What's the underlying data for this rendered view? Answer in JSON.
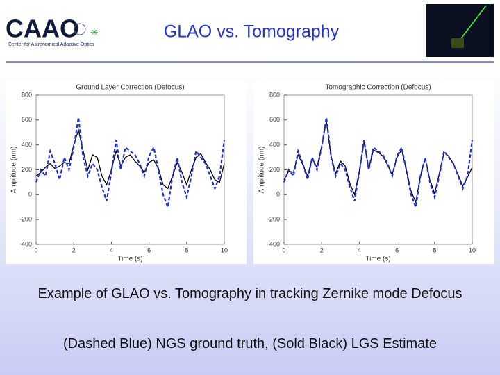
{
  "slide": {
    "logo": "CAAO",
    "logo_subtitle": "Center for Astronomical Adaptive Optics",
    "title": "GLAO vs. Tomography",
    "caption": [
      "Example of GLAO vs. Tomography in tracking Zernike mode Defocus",
      "(Dashed Blue) NGS ground truth, (Sold Black) LGS Estimate"
    ]
  },
  "chart_data": [
    {
      "type": "line",
      "title": "Ground Layer Correction (Defocus)",
      "x_label": "Time (s)",
      "y_label": "Amplitude (nm)",
      "x": [
        0,
        0.25,
        0.5,
        0.75,
        1,
        1.25,
        1.5,
        1.75,
        2,
        2.25,
        2.5,
        2.75,
        3,
        3.25,
        3.5,
        3.75,
        4,
        4.25,
        4.5,
        4.75,
        5,
        5.25,
        5.5,
        5.75,
        6,
        6.25,
        6.5,
        6.75,
        7,
        7.25,
        7.5,
        7.75,
        8,
        8.25,
        8.5,
        8.75,
        9,
        9.25,
        9.5,
        9.75,
        10
      ],
      "xlim": [
        0,
        10
      ],
      "xticks": [
        0,
        2,
        4,
        6,
        8,
        10
      ],
      "ylim": [
        -400,
        800
      ],
      "yticks": [
        800,
        600,
        400,
        200,
        0,
        -200,
        -400
      ],
      "series": [
        {
          "color": "#000000",
          "style": "solid",
          "values": [
            150,
            180,
            220,
            250,
            210,
            230,
            260,
            250,
            400,
            520,
            350,
            200,
            320,
            300,
            150,
            80,
            200,
            350,
            230,
            300,
            320,
            270,
            230,
            180,
            260,
            280,
            210,
            80,
            50,
            150,
            260,
            180,
            80,
            200,
            300,
            330,
            260,
            200,
            120,
            100,
            250
          ]
        },
        {
          "color": "#1f2fd0",
          "style": "dashed",
          "values": [
            100,
            200,
            150,
            350,
            250,
            120,
            300,
            200,
            380,
            620,
            300,
            150,
            250,
            200,
            60,
            -50,
            180,
            440,
            200,
            380,
            350,
            320,
            250,
            150,
            310,
            380,
            200,
            0,
            -100,
            150,
            300,
            100,
            -20,
            150,
            350,
            300,
            250,
            150,
            50,
            150,
            440
          ]
        }
      ]
    },
    {
      "type": "line",
      "title": "Tomographic Correction (Defocus)",
      "x_label": "Time (s)",
      "y_label": "Amplitude (nm)",
      "x": [
        0,
        0.25,
        0.5,
        0.75,
        1,
        1.25,
        1.5,
        1.75,
        2,
        2.25,
        2.5,
        2.75,
        3,
        3.25,
        3.5,
        3.75,
        4,
        4.25,
        4.5,
        4.75,
        5,
        5.25,
        5.5,
        5.75,
        6,
        6.25,
        6.5,
        6.75,
        7,
        7.25,
        7.5,
        7.75,
        8,
        8.25,
        8.5,
        8.75,
        9,
        9.25,
        9.5,
        9.75,
        10
      ],
      "xlim": [
        0,
        10
      ],
      "xticks": [
        0,
        2,
        4,
        6,
        8,
        10
      ],
      "ylim": [
        -400,
        800
      ],
      "yticks": [
        800,
        600,
        400,
        200,
        0,
        -200,
        -400
      ],
      "series": [
        {
          "color": "#000000",
          "style": "solid",
          "values": [
            120,
            190,
            180,
            320,
            240,
            150,
            290,
            220,
            390,
            590,
            310,
            170,
            270,
            230,
            90,
            0,
            190,
            420,
            210,
            360,
            340,
            310,
            240,
            160,
            300,
            360,
            200,
            30,
            -60,
            150,
            290,
            120,
            10,
            170,
            340,
            310,
            250,
            160,
            70,
            140,
            220
          ]
        },
        {
          "color": "#1f2fd0",
          "style": "dashed",
          "values": [
            100,
            200,
            150,
            350,
            250,
            120,
            300,
            200,
            380,
            620,
            300,
            150,
            250,
            200,
            60,
            -50,
            180,
            440,
            200,
            380,
            350,
            320,
            250,
            150,
            310,
            380,
            200,
            0,
            -100,
            150,
            300,
            100,
            -20,
            150,
            350,
            300,
            250,
            150,
            50,
            150,
            440
          ]
        }
      ]
    }
  ]
}
